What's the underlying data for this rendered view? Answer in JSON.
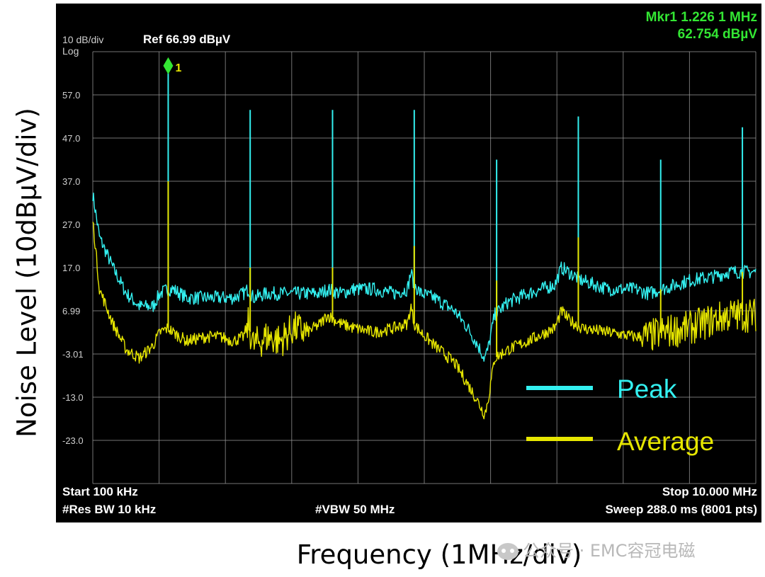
{
  "analyzer": {
    "scale_label": "10 dB/div",
    "ref_label": "Ref 66.99 dBµV",
    "log_label": "Log",
    "marker_readout_line1": "Mkr1 1.226 1 MHz",
    "marker_readout_line2": "62.754 dBµV",
    "marker_number": "1",
    "start_label": "Start 100 kHz",
    "stop_label": "Stop 10.000 MHz",
    "rbw_label": "#Res BW 10 kHz",
    "vbw_label": "#VBW 50 MHz",
    "sweep_label": "Sweep  288.0 ms (8001 pts)"
  },
  "axis": {
    "ylabel": "Noise Level (10dBµV/div)",
    "xlabel": "Frequency (1MHz/div)"
  },
  "watermark": "公众号 · EMC容冠电磁",
  "colors": {
    "background": "#000000",
    "grid": "#9a9a9a",
    "peak": "#33f0f0",
    "average": "#e6e600",
    "marker": "#33e633",
    "text": "#ffffff"
  },
  "chart_data": {
    "type": "line",
    "xlim": [
      0.1,
      10.0
    ],
    "ylim": [
      -33.01,
      66.99
    ],
    "y_ticks": [
      "57.0",
      "47.0",
      "37.0",
      "27.0",
      "17.0",
      "6.99",
      "-3.01",
      "-13.0",
      "-23.0"
    ],
    "y_tick_values": [
      57.0,
      47.0,
      37.0,
      27.0,
      17.0,
      6.99,
      -3.01,
      -13.0,
      -23.0
    ],
    "legend": [
      "Peak",
      "Average"
    ],
    "legend_position": "bottom-right",
    "grid": true,
    "marker": {
      "x": 1.2261,
      "y": 62.754,
      "label": "1"
    },
    "series": [
      {
        "name": "Peak",
        "color": "#33f0f0",
        "x": [
          0.1,
          0.2,
          0.4,
          0.6,
          0.8,
          1.0,
          1.1,
          1.226,
          1.3,
          1.5,
          1.8,
          2.0,
          2.2,
          2.35,
          2.42,
          2.5,
          2.7,
          3.0,
          3.3,
          3.5,
          3.6,
          3.8,
          4.0,
          4.3,
          4.6,
          4.8,
          4.85,
          4.9,
          5.0,
          5.2,
          5.5,
          5.7,
          5.85,
          5.95,
          6.0,
          6.1,
          6.3,
          6.6,
          7.0,
          7.1,
          7.2,
          7.4,
          7.8,
          8.2,
          8.4,
          8.6,
          9.0,
          9.4,
          9.6,
          9.8,
          10.0
        ],
        "y": [
          34,
          24,
          17,
          11,
          8,
          8,
          11,
          12,
          12,
          10,
          10,
          10,
          10,
          11,
          12,
          10,
          11,
          11,
          11,
          11,
          12,
          11,
          12,
          12,
          11,
          12,
          16,
          13,
          11,
          10,
          7,
          3,
          -1,
          -4,
          -2,
          6,
          9,
          11,
          13,
          17,
          16,
          14,
          12,
          12,
          11,
          12,
          14,
          15,
          16,
          16,
          16
        ],
        "spikes": [
          {
            "x": 1.226,
            "y": 62.75
          },
          {
            "x": 2.45,
            "y": 53.5
          },
          {
            "x": 3.68,
            "y": 53.5
          },
          {
            "x": 4.9,
            "y": 53.5
          },
          {
            "x": 6.13,
            "y": 42.0
          },
          {
            "x": 7.35,
            "y": 52.0
          },
          {
            "x": 8.58,
            "y": 42.0
          },
          {
            "x": 9.8,
            "y": 49.5
          }
        ]
      },
      {
        "name": "Average",
        "color": "#e6e600",
        "x": [
          0.1,
          0.2,
          0.4,
          0.6,
          0.8,
          1.0,
          1.1,
          1.226,
          1.3,
          1.5,
          1.8,
          2.0,
          2.2,
          2.35,
          2.42,
          2.5,
          2.7,
          2.9,
          3.1,
          3.3,
          3.5,
          3.6,
          3.8,
          4.0,
          4.3,
          4.6,
          4.8,
          4.85,
          4.9,
          5.0,
          5.2,
          5.5,
          5.7,
          5.85,
          5.95,
          6.0,
          6.1,
          6.3,
          6.6,
          7.0,
          7.1,
          7.2,
          7.4,
          7.8,
          8.2,
          8.4,
          8.6,
          9.0,
          9.4,
          9.6,
          9.8,
          10.0
        ],
        "y": [
          28,
          12,
          4,
          -2,
          -4,
          -1,
          2,
          3,
          2,
          0,
          1,
          1,
          0,
          1,
          4,
          -1,
          1,
          0,
          3,
          2,
          4,
          6,
          4,
          3,
          2,
          3,
          4,
          8,
          4,
          2,
          -1,
          -5,
          -10,
          -14,
          -17,
          -14,
          -4,
          -2,
          0,
          3,
          7,
          5,
          3,
          2,
          1,
          1,
          2,
          3,
          5,
          6,
          6,
          6
        ],
        "spikes": [
          {
            "x": 1.226,
            "y": 37.0
          },
          {
            "x": 2.45,
            "y": 17.0
          },
          {
            "x": 3.68,
            "y": 17.0
          },
          {
            "x": 4.9,
            "y": 22.0
          },
          {
            "x": 6.13,
            "y": 14.0
          },
          {
            "x": 7.35,
            "y": 24.0
          },
          {
            "x": 8.58,
            "y": 12.0
          },
          {
            "x": 9.8,
            "y": 16.0
          }
        ]
      }
    ]
  }
}
